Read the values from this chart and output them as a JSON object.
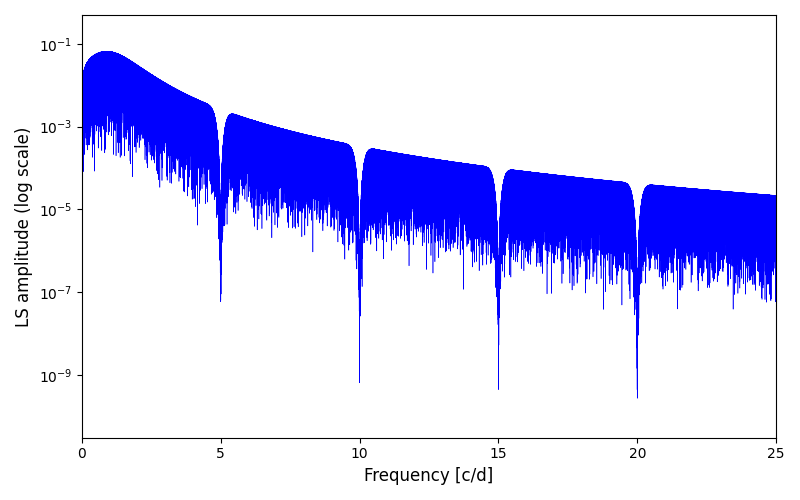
{
  "title": "",
  "xlabel": "Frequency [c/d]",
  "ylabel": "LS amplitude (log scale)",
  "xlim": [
    0,
    25
  ],
  "ylim_low": 3e-11,
  "ylim_high": 0.5,
  "yscale": "log",
  "line_color": "#0000ff",
  "line_width": 0.4,
  "freq_max": 25.0,
  "n_points": 50000,
  "seed": 12345,
  "background_color": "#ffffff",
  "figsize": [
    8.0,
    5.0
  ],
  "dpi": 100
}
